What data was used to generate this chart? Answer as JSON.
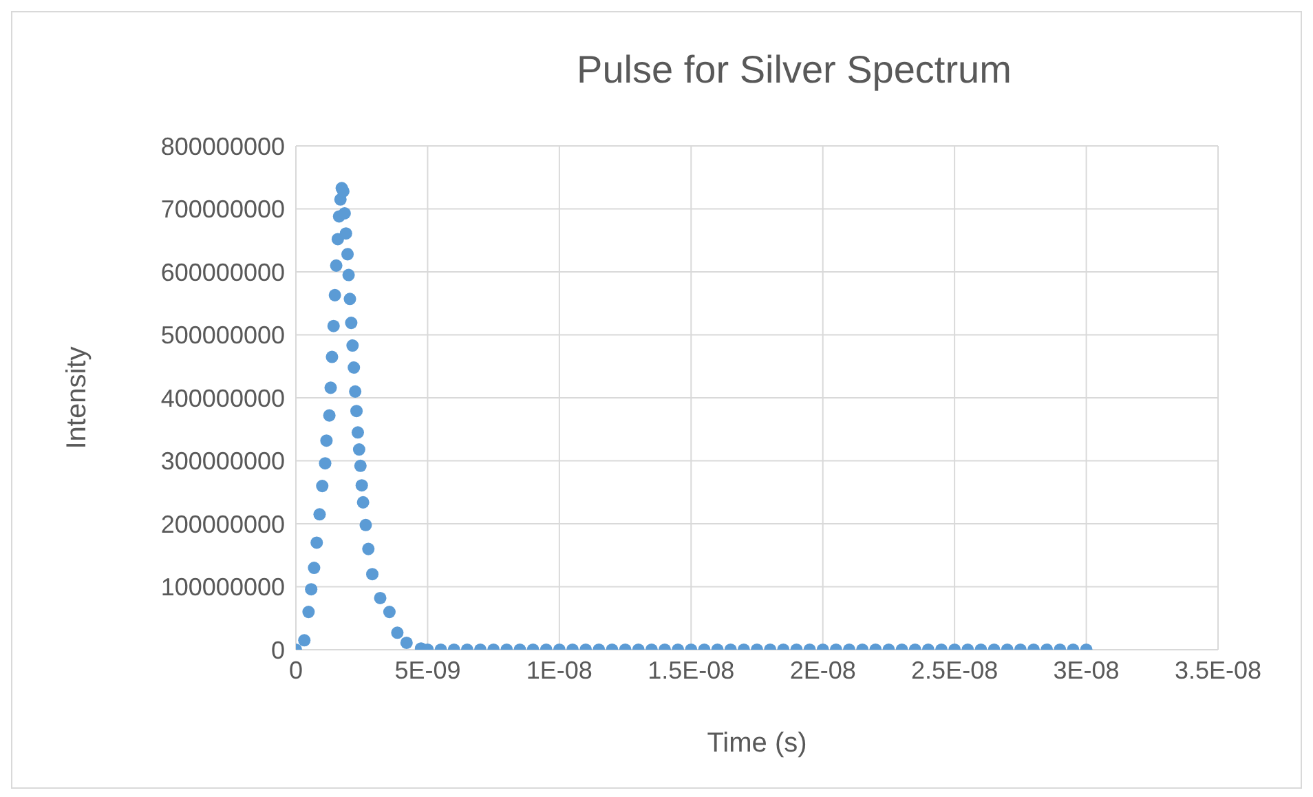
{
  "chart_data": {
    "type": "scatter",
    "title": "Pulse for Silver Spectrum",
    "xlabel": "Time (s)",
    "ylabel": "Intensity",
    "xlim": [
      0,
      3.5e-08
    ],
    "xticks": [
      0,
      {
        "value": 5e-09,
        "label": "5E-09"
      },
      {
        "value": 1e-08,
        "label": "1E-08"
      },
      {
        "value": 1.5e-08,
        "label": "1.5E-08"
      },
      {
        "value": 2e-08,
        "label": "2E-08"
      },
      {
        "value": 2.5e-08,
        "label": "2.5E-08"
      },
      {
        "value": 3e-08,
        "label": "3E-08"
      },
      {
        "value": 3.5e-08,
        "label": "3.5E-08"
      }
    ],
    "ylim": [
      0,
      800000000
    ],
    "yticks": [
      0,
      100000000,
      200000000,
      300000000,
      400000000,
      500000000,
      600000000,
      700000000,
      800000000
    ],
    "grid": true,
    "marker": "circle",
    "legend": false,
    "series": [
      {
        "color": "#5b9bd5",
        "x": [
          0,
          3.2e-10,
          4.8e-10,
          5.8e-10,
          6.9e-10,
          7.9e-10,
          9e-10,
          1e-09,
          1.11e-09,
          1.16e-09,
          1.27e-09,
          1.32e-09,
          1.37e-09,
          1.43e-09,
          1.48e-09,
          1.53e-09,
          1.59e-09,
          1.64e-09,
          1.69e-09,
          1.74e-09,
          1.8e-09,
          1.85e-09,
          1.9e-09,
          1.96e-09,
          2e-09,
          2.05e-09,
          2.1e-09,
          2.15e-09,
          2.2e-09,
          2.25e-09,
          2.3e-09,
          2.35e-09,
          2.4e-09,
          2.45e-09,
          2.5e-09,
          2.55e-09,
          2.65e-09,
          2.75e-09,
          2.9e-09,
          3.2e-09,
          3.55e-09,
          3.85e-09,
          4.2e-09,
          4.75e-09,
          5e-09,
          5.5e-09,
          6e-09,
          6.5e-09,
          7e-09,
          7.5e-09,
          8e-09,
          8.5e-09,
          9e-09,
          9.5e-09,
          1e-08,
          1.05e-08,
          1.1e-08,
          1.15e-08,
          1.2e-08,
          1.25e-08,
          1.3e-08,
          1.35e-08,
          1.4e-08,
          1.45e-08,
          1.5e-08,
          1.55e-08,
          1.6e-08,
          1.65e-08,
          1.7e-08,
          1.75e-08,
          1.8e-08,
          1.85e-08,
          1.9e-08,
          1.95e-08,
          2e-08,
          2.05e-08,
          2.1e-08,
          2.15e-08,
          2.2e-08,
          2.25e-08,
          2.3e-08,
          2.35e-08,
          2.4e-08,
          2.45e-08,
          2.5e-08,
          2.55e-08,
          2.6e-08,
          2.65e-08,
          2.7e-08,
          2.75e-08,
          2.8e-08,
          2.85e-08,
          2.9e-08,
          2.95e-08,
          3e-08
        ],
        "values": [
          0,
          15000000,
          60000000,
          96000000,
          130000000,
          170000000,
          215000000,
          260000000,
          296000000,
          332000000,
          372000000,
          416000000,
          465000000,
          514000000,
          563000000,
          610000000,
          652000000,
          688000000,
          715000000,
          733000000,
          728000000,
          693000000,
          661000000,
          628000000,
          595000000,
          557000000,
          519000000,
          483000000,
          448000000,
          410000000,
          379000000,
          345000000,
          318000000,
          292000000,
          261000000,
          234000000,
          198000000,
          160000000,
          120000000,
          82000000,
          60000000,
          27000000,
          11000000,
          2000000,
          0,
          0,
          0,
          0,
          0,
          0,
          0,
          0,
          0,
          0,
          0,
          0,
          0,
          0,
          0,
          0,
          0,
          0,
          0,
          0,
          0,
          0,
          0,
          0,
          0,
          0,
          0,
          0,
          0,
          0,
          0,
          0,
          0,
          0,
          0,
          0,
          0,
          0,
          0,
          0,
          0,
          0,
          0,
          0,
          0,
          0,
          0,
          0,
          0,
          0,
          0
        ]
      }
    ]
  }
}
